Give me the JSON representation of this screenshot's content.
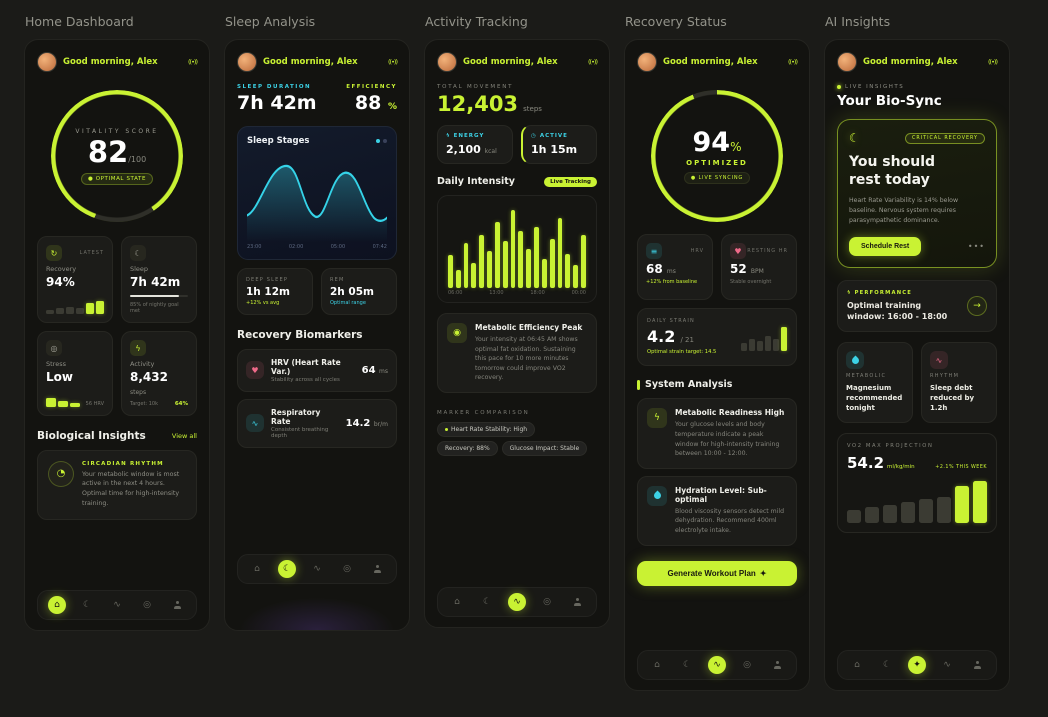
{
  "icons": {
    "live": "((•))",
    "home": "⌂",
    "sleep": "☾",
    "activity": "∿",
    "recovery": "◎",
    "heart": "♥",
    "bolt": "ϟ",
    "clock": "◷",
    "sparkle": "✦",
    "arrow": "→",
    "dots": "•••",
    "wave": "∿",
    "target": "◉",
    "lines": "≡",
    "refresh": "↻",
    "pie": "◔",
    "dot": "●"
  },
  "header": {
    "greeting": "Good morning, Alex"
  },
  "s1": {
    "panel_title": "Home Dashboard",
    "gauge": {
      "label": "VITALITY SCORE",
      "value": "82",
      "max": "/100",
      "badge": "● OPTIMAL STATE"
    },
    "recovery": {
      "tag": "LATEST",
      "label": "Recovery",
      "value": "94%",
      "bars": {
        "values": [
          30,
          42,
          55,
          45,
          78,
          95
        ],
        "accent_from": 4
      }
    },
    "sleep": {
      "label": "Sleep",
      "value": "7h 42m",
      "note": "85% of nightly goal met"
    },
    "stress": {
      "label": "Stress",
      "value": "Low",
      "note": "56 HRV",
      "bars": {
        "values": [
          85,
          60,
          35
        ],
        "accent_from": 0
      }
    },
    "activity": {
      "label": "Activity",
      "value": "8,432",
      "unit": "steps",
      "note": "Target: 10k",
      "pct": "64%"
    },
    "insights": {
      "title": "Biological Insights",
      "link": "View all",
      "tag": "CIRCADIAN RHYTHM",
      "body": "Your metabolic window is most active in the next 4 hours. Optimal time for high-intensity training."
    }
  },
  "s2": {
    "panel_title": "Sleep Analysis",
    "duration": {
      "label": "SLEEP DURATION",
      "value": "7h 42m"
    },
    "efficiency": {
      "label": "EFFICIENCY",
      "value": "88",
      "unit": "%"
    },
    "stages": {
      "title": "Sleep Stages",
      "axis": [
        "23:00",
        "02:00",
        "05:00",
        "07:42"
      ]
    },
    "deep": {
      "label": "DEEP SLEEP",
      "value": "1h 12m",
      "note": "+12% vs avg"
    },
    "rem": {
      "label": "REM",
      "value": "2h 05m",
      "note": "Optimal range"
    },
    "biomarkers": {
      "title": "Recovery Biomarkers",
      "hrv": {
        "title": "HRV (Heart Rate Var.)",
        "sub": "Stability across all cycles",
        "value": "64",
        "unit": "ms"
      },
      "resp": {
        "title": "Respiratory Rate",
        "sub": "Consistent breathing depth",
        "value": "14.2",
        "unit": "br/m"
      }
    }
  },
  "s3": {
    "panel_title": "Activity Tracking",
    "movement": {
      "label": "TOTAL MOVEMENT",
      "value": "12,403",
      "unit": "steps"
    },
    "energy": {
      "label": "ENERGY",
      "value": "2,100",
      "unit": "kcal"
    },
    "active": {
      "label": "ACTIVE",
      "value": "1h 15m"
    },
    "intensity": {
      "title": "Daily Intensity",
      "badge": "Live Tracking",
      "bars": {
        "values": [
          40,
          22,
          55,
          30,
          65,
          45,
          80,
          58,
          95,
          70,
          48,
          75,
          35,
          60,
          85,
          42,
          28,
          65
        ],
        "accent_from": 0
      },
      "axis": [
        "06:00",
        "13:00",
        "18:00",
        "00:00"
      ]
    },
    "insight": {
      "title": "Metabolic Efficiency Peak",
      "body": "Your intensity at 06:45 AM shows optimal fat oxidation. Sustaining this pace for 10 more minutes tomorrow could improve VO2 recovery."
    },
    "comparison": {
      "label": "MARKER COMPARISON",
      "chips": [
        "Heart Rate Stability: High",
        "Recovery: 88%",
        "Glucose Impact: Stable"
      ]
    }
  },
  "s4": {
    "panel_title": "Recovery Status",
    "gauge": {
      "value": "94",
      "unit": "%",
      "state": "OPTIMIZED",
      "badge": "● LIVE SYNCING"
    },
    "hrv": {
      "label": "HRV",
      "value": "68",
      "unit": "ms",
      "note": "+12% from baseline"
    },
    "rhr": {
      "label": "RESTING HR",
      "value": "52",
      "unit": "BPM",
      "note": "Stable overnight"
    },
    "strain": {
      "label": "DAILY STRAIN",
      "value": "4.2",
      "max": "/ 21",
      "note": "Optimal strain target: 14.5",
      "bars": {
        "values": [
          30,
          45,
          35,
          55,
          42,
          85
        ],
        "accent_from": 5
      }
    },
    "analysis": {
      "title": "System Analysis",
      "items": [
        {
          "title": "Metabolic Readiness High",
          "body": "Your glucose levels and body temperature indicate a peak window for high-intensity training between 10:00 - 12:00."
        },
        {
          "title": "Hydration Level: Sub-optimal",
          "body": "Blood viscosity sensors detect mild dehydration. Recommend 400ml electrolyte intake."
        }
      ]
    },
    "cta": "Generate Workout Plan"
  },
  "s5": {
    "panel_title": "AI Insights",
    "live": {
      "label": "LIVE INSIGHTS",
      "title": "Your Bio-Sync"
    },
    "hero": {
      "badge": "CRITICAL RECOVERY",
      "title": "You should rest today",
      "body": "Heart Rate Variability is 14% below baseline. Nervous system requires parasympathetic dominance.",
      "cta": "Schedule Rest",
      "more": "•••"
    },
    "performance": {
      "label": "PERFORMANCE",
      "text": "Optimal training window: 16:00 - 18:00"
    },
    "metabolic": {
      "label": "METABOLIC",
      "text": "Magnesium recommended tonight"
    },
    "rhythm": {
      "label": "RHYTHM",
      "text": "Sleep debt reduced by 1.2h"
    },
    "vo2": {
      "label": "VO2 MAX PROJECTION",
      "value": "54.2",
      "unit": "ml/kg/min",
      "delta": "+2.1% THIS WEEK",
      "bars": {
        "values": [
          30,
          36,
          42,
          48,
          55,
          62,
          88,
          100
        ],
        "accent_from": 6
      }
    }
  }
}
